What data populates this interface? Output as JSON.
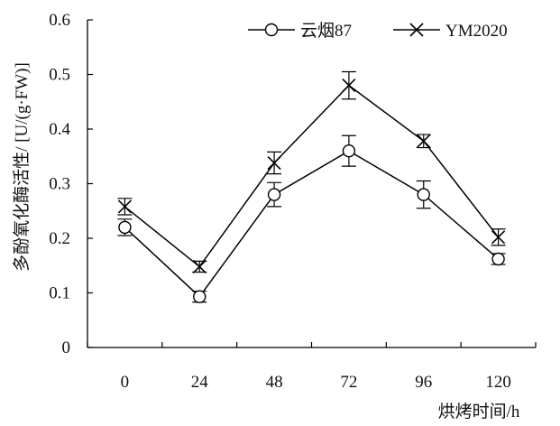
{
  "chart_data": {
    "type": "line",
    "xlabel": "烘烤时间/h",
    "ylabel": "多酚氧化酶活性/ [U/(g·FW)]",
    "categories": [
      "0",
      "24",
      "48",
      "72",
      "96",
      "120"
    ],
    "ylim": [
      0,
      0.6
    ],
    "yticks": [
      "0",
      "0.1",
      "0.2",
      "0.3",
      "0.4",
      "0.5",
      "0.6"
    ],
    "grid": false,
    "legend_position": "top-right",
    "series": [
      {
        "name": "云烟87",
        "marker": "circle",
        "values": [
          0.22,
          0.093,
          0.28,
          0.36,
          0.28,
          0.162
        ],
        "errors": [
          0.015,
          0.01,
          0.022,
          0.028,
          0.025,
          0.01
        ]
      },
      {
        "name": "YM2020",
        "marker": "x",
        "values": [
          0.258,
          0.148,
          0.338,
          0.48,
          0.378,
          0.202
        ],
        "errors": [
          0.015,
          0.01,
          0.02,
          0.025,
          0.012,
          0.015
        ]
      }
    ]
  }
}
